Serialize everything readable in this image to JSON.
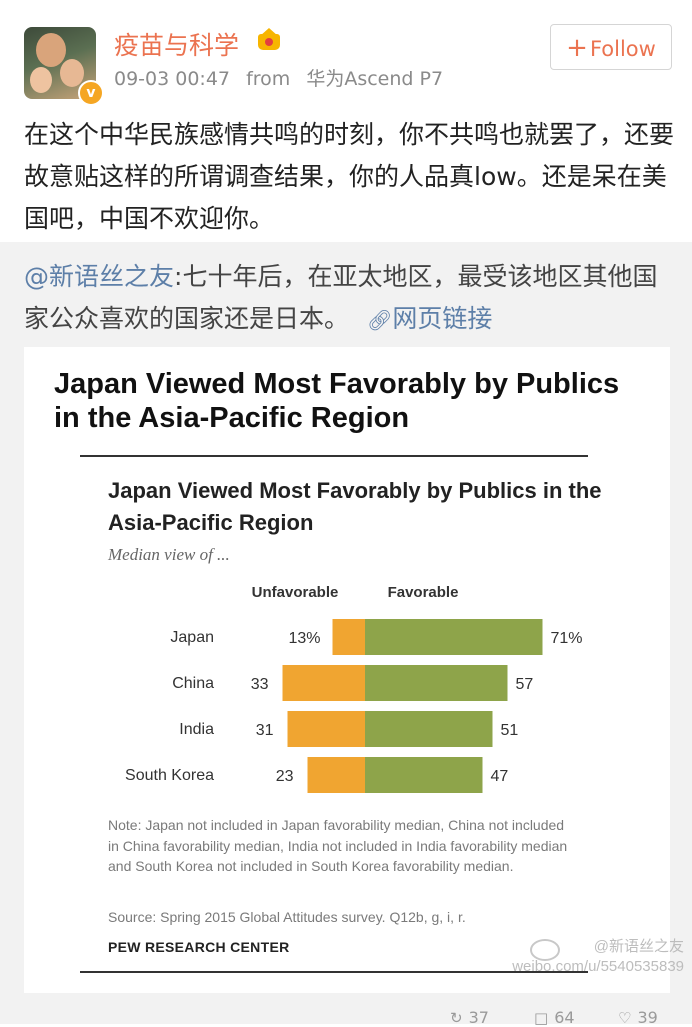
{
  "post": {
    "author": "疫苗与科学",
    "timestamp": "09-03 00:47",
    "from_label": "from",
    "device": "华为Ascend P7",
    "follow_label": "Follow",
    "follow_prefix": "+",
    "verified_mark": "v",
    "text": "在这个中华民族感情共鸣的时刻，你不共鸣也就罢了，还要故意贴这样的所谓调查结果，你的人品真low。还是呆在美国吧，中国不欢迎你。"
  },
  "repost": {
    "mention": "@新语丝之友",
    "text": ":七十年后，在亚太地区，最受该地区其他国家公众喜欢的国家还是日本。",
    "link_label": "网页链接",
    "image": {
      "headline": "Japan Viewed Most Favorably by Publics in the Asia-Pacific Region",
      "note": "Note: Japan not included in Japan favorability median, China not included in China favorability median, India not included in India favorability median and South Korea not included in South Korea favorability median.",
      "source": "Source: Spring 2015 Global Attitudes survey. Q12b, g, i, r.",
      "org": "PEW RESEARCH CENTER",
      "watermark_user": "@新语丝之友",
      "watermark_url": "weibo.com/u/5540535839"
    }
  },
  "chart_data": {
    "type": "bar",
    "title": "Japan Viewed Most Favorably by Publics in the Asia-Pacific Region",
    "subtitle": "Median view of ...",
    "categories": [
      "Japan",
      "China",
      "India",
      "South Korea"
    ],
    "series": [
      {
        "name": "Unfavorable",
        "values": [
          13,
          33,
          31,
          23
        ],
        "labels": [
          "13%",
          "33",
          "31",
          "23"
        ],
        "color": "#f0a531"
      },
      {
        "name": "Favorable",
        "values": [
          71,
          57,
          51,
          47
        ],
        "labels": [
          "71%",
          "57",
          "51",
          "47"
        ],
        "color": "#8ea44a"
      }
    ],
    "orientation": "diverging-horizontal",
    "grid": false
  },
  "actions": {
    "repost_count": "37",
    "comment_count": "64",
    "like_count": "39"
  },
  "colors": {
    "accent": "#eb7350",
    "link": "#5d7fa8",
    "unfavorable": "#f0a531",
    "favorable": "#8ea44a"
  },
  "icons": [
    "crown-icon",
    "verified-icon",
    "plus-icon",
    "link-icon",
    "weibo-logo-icon",
    "repost-icon",
    "comment-icon",
    "like-icon"
  ]
}
